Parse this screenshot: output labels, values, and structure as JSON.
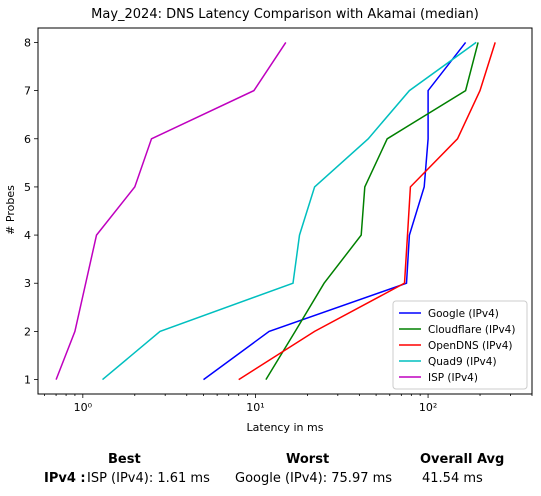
{
  "chart_data": {
    "type": "line",
    "title": "May_2024: DNS Latency Comparison with Akamai (median)",
    "xlabel": "Latency in ms",
    "ylabel": "# Probes",
    "x_scale": "log",
    "xlim": [
      0.55,
      400
    ],
    "ylim": [
      0.7,
      8.3
    ],
    "x_ticks": [
      1,
      10,
      100
    ],
    "x_tick_labels": [
      "10⁰",
      "10¹",
      "10²"
    ],
    "y_ticks": [
      1,
      2,
      3,
      4,
      5,
      6,
      7,
      8
    ],
    "grid": false,
    "legend_position": "lower-right",
    "series": [
      {
        "name": "Google (IPv4)",
        "color": "#0000ff",
        "x": [
          5.0,
          12.0,
          75.0,
          78.0,
          95.0,
          100.0,
          100.0,
          165.0
        ],
        "y": [
          1,
          2,
          3,
          4,
          5,
          6,
          7,
          8
        ]
      },
      {
        "name": "Cloudflare (IPv4)",
        "color": "#008000",
        "x": [
          11.5,
          17.0,
          25.0,
          41.0,
          43.0,
          58.0,
          165.0,
          195.0
        ],
        "y": [
          1,
          2,
          3,
          4,
          5,
          6,
          7,
          8
        ]
      },
      {
        "name": "OpenDNS (IPv4)",
        "color": "#ff0000",
        "x": [
          8.0,
          22.0,
          73.0,
          76.0,
          79.0,
          148.0,
          200.0,
          245.0
        ],
        "y": [
          1,
          2,
          3,
          4,
          5,
          6,
          7,
          8
        ]
      },
      {
        "name": "Quad9 (IPv4)",
        "color": "#00bfbf",
        "x": [
          1.3,
          2.8,
          16.5,
          18.0,
          22.0,
          45.0,
          78.0,
          190.0
        ],
        "y": [
          1,
          2,
          3,
          4,
          5,
          6,
          7,
          8
        ]
      },
      {
        "name": "ISP (IPv4)",
        "color": "#bf00bf",
        "x": [
          0.7,
          0.9,
          1.2,
          2.0,
          2.5,
          9.8,
          15.0
        ],
        "y": [
          1,
          2,
          4,
          5,
          6,
          7,
          8
        ]
      }
    ]
  },
  "summary": {
    "best_header": "Best",
    "worst_header": "Worst",
    "avg_header": "Overall Avg",
    "row_label": "IPv4 :",
    "best_value": "ISP (IPv4): 1.61 ms",
    "worst_value": "Google (IPv4): 75.97 ms",
    "avg_value": "41.54 ms"
  }
}
